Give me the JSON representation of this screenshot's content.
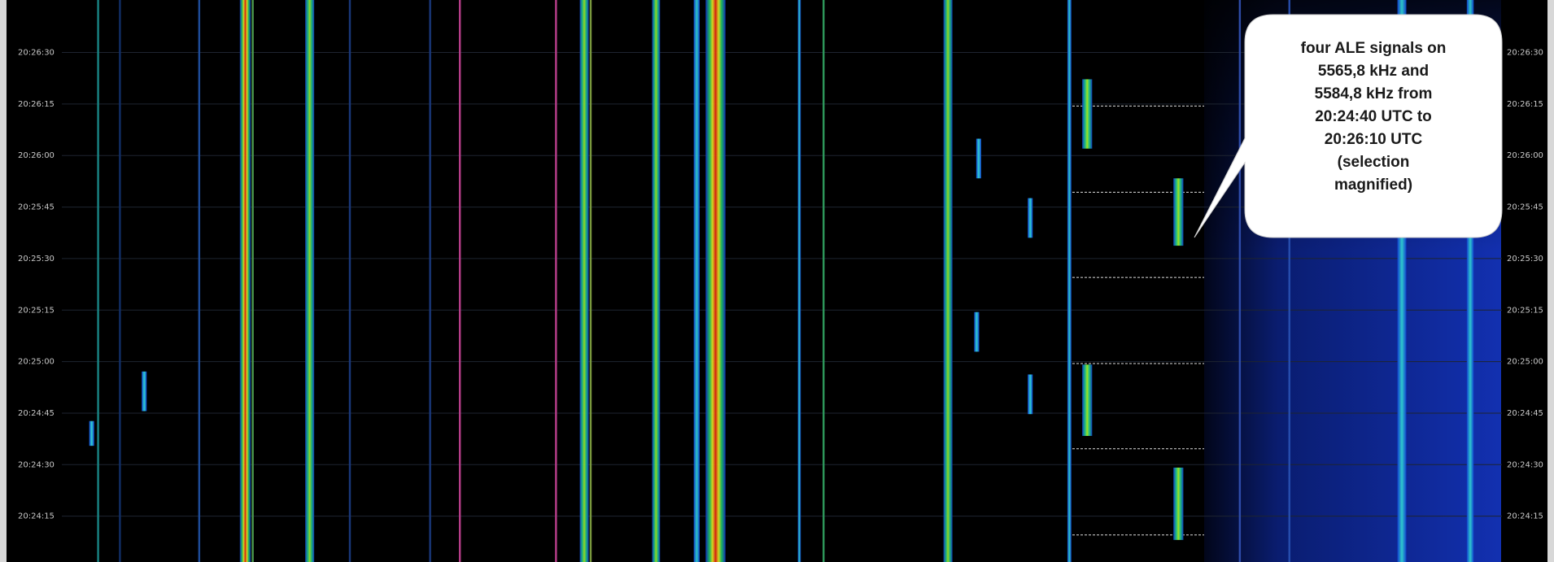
{
  "time_axis": {
    "labels": [
      "20:26:30",
      "20:26:15",
      "20:26:00",
      "20:25:45",
      "20:25:30",
      "20:25:15",
      "20:25:00",
      "20:24:45",
      "20:24:30",
      "20:24:15"
    ]
  },
  "callout": {
    "lines": [
      "four ALE signals on",
      "5565,8 kHz and",
      "5584,8 kHz from",
      "20:24:40 UTC to",
      "20:26:10 UTC",
      "(selection",
      "magnified)"
    ]
  }
}
